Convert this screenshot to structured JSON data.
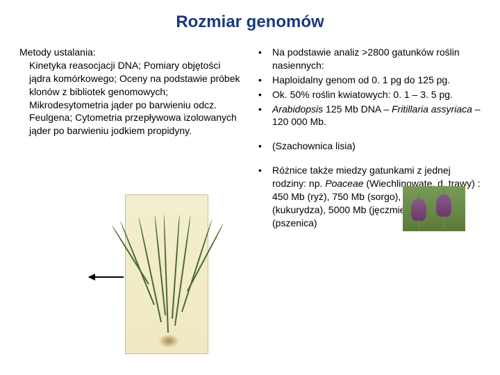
{
  "title": "Rozmiar genomów",
  "left": {
    "heading": "Metody ustalania:",
    "body": "Kinetyka reasocjacji DNA; Pomiary objętości jądra komórkowego; Oceny na podstawie próbek klonów z bibliotek genomowych; Mikrodesytometria jąder po barwieniu odcz. Feulgena; Cytometria przepływowa izolowanych jąder po barwieniu jodkiem propidyny."
  },
  "right": {
    "items": [
      {
        "pre": "Na podstawie analiz >2800 gatunków roślin nasiennych:"
      },
      {
        "pre": "Haploidalny genom od 0. 1 pg do 125 pg."
      },
      {
        "pre": "Ok. 50% roślin kwiatowych: 0. 1 – 3. 5 pg."
      },
      {
        "pre": "",
        "italic1": "Arabidopsis",
        "mid1": " 125 Mb DNA – ",
        "italic2": "Fritillaria assyriaca",
        "post": " – 120 000 Mb."
      },
      {
        "gap": true
      },
      {
        "pre": "(Szachownica lisia)"
      },
      {
        "gap": true
      },
      {
        "pre": "Różnice także miedzy gatunkami z jednej rodziny: np. ",
        "italic1": "Poaceae",
        "post": " (Wiechlinowate, d. trawy) : 450 Mb (ryż), 750 Mb (sorgo), 2500 Mb (kukurydza), 5000 Mb (jęczmień), 16 000Mb (pszenica)"
      }
    ]
  },
  "images": {
    "plant_alt": "grass-botanical-illustration",
    "fritillaria_alt": "fritillaria-flower"
  }
}
